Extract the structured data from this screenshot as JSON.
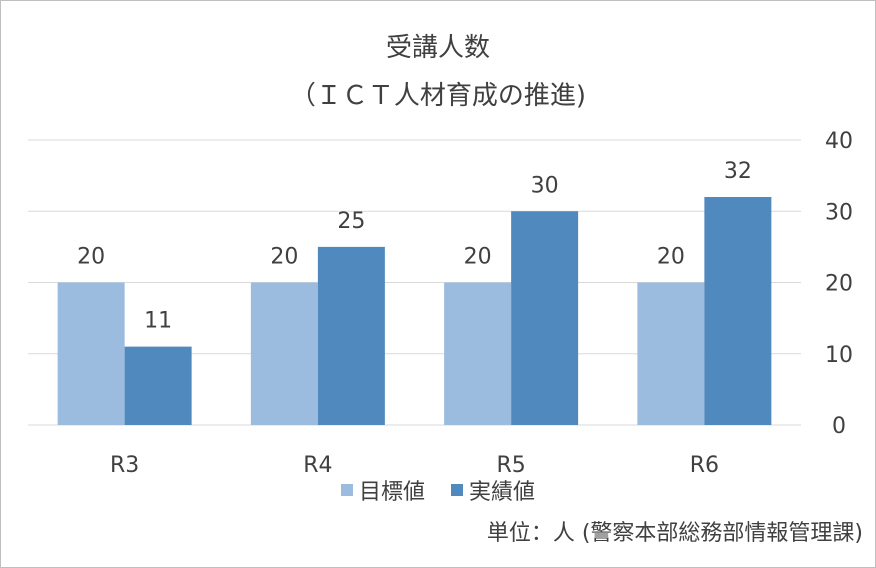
{
  "chart_data": {
    "type": "bar",
    "title": "受講人数",
    "subtitle": "（ＩＣＴ人材育成の推進)",
    "categories": [
      "R3",
      "R4",
      "R5",
      "R6"
    ],
    "series": [
      {
        "name": "目標値",
        "values": [
          20,
          20,
          20,
          20
        ],
        "color": "#9bbbdf"
      },
      {
        "name": "実績値",
        "values": [
          11,
          25,
          30,
          32
        ],
        "color": "#4f89bd"
      }
    ],
    "ylim": [
      0,
      40
    ],
    "yticks": [
      0,
      10,
      20,
      30,
      40
    ],
    "y_axis_side": "right",
    "grid": true,
    "data_labels": true,
    "legend_position": "bottom",
    "grid_color": "#d9d9d9"
  },
  "footnote": "単位：人 (警察本部総務部情報管理課)"
}
